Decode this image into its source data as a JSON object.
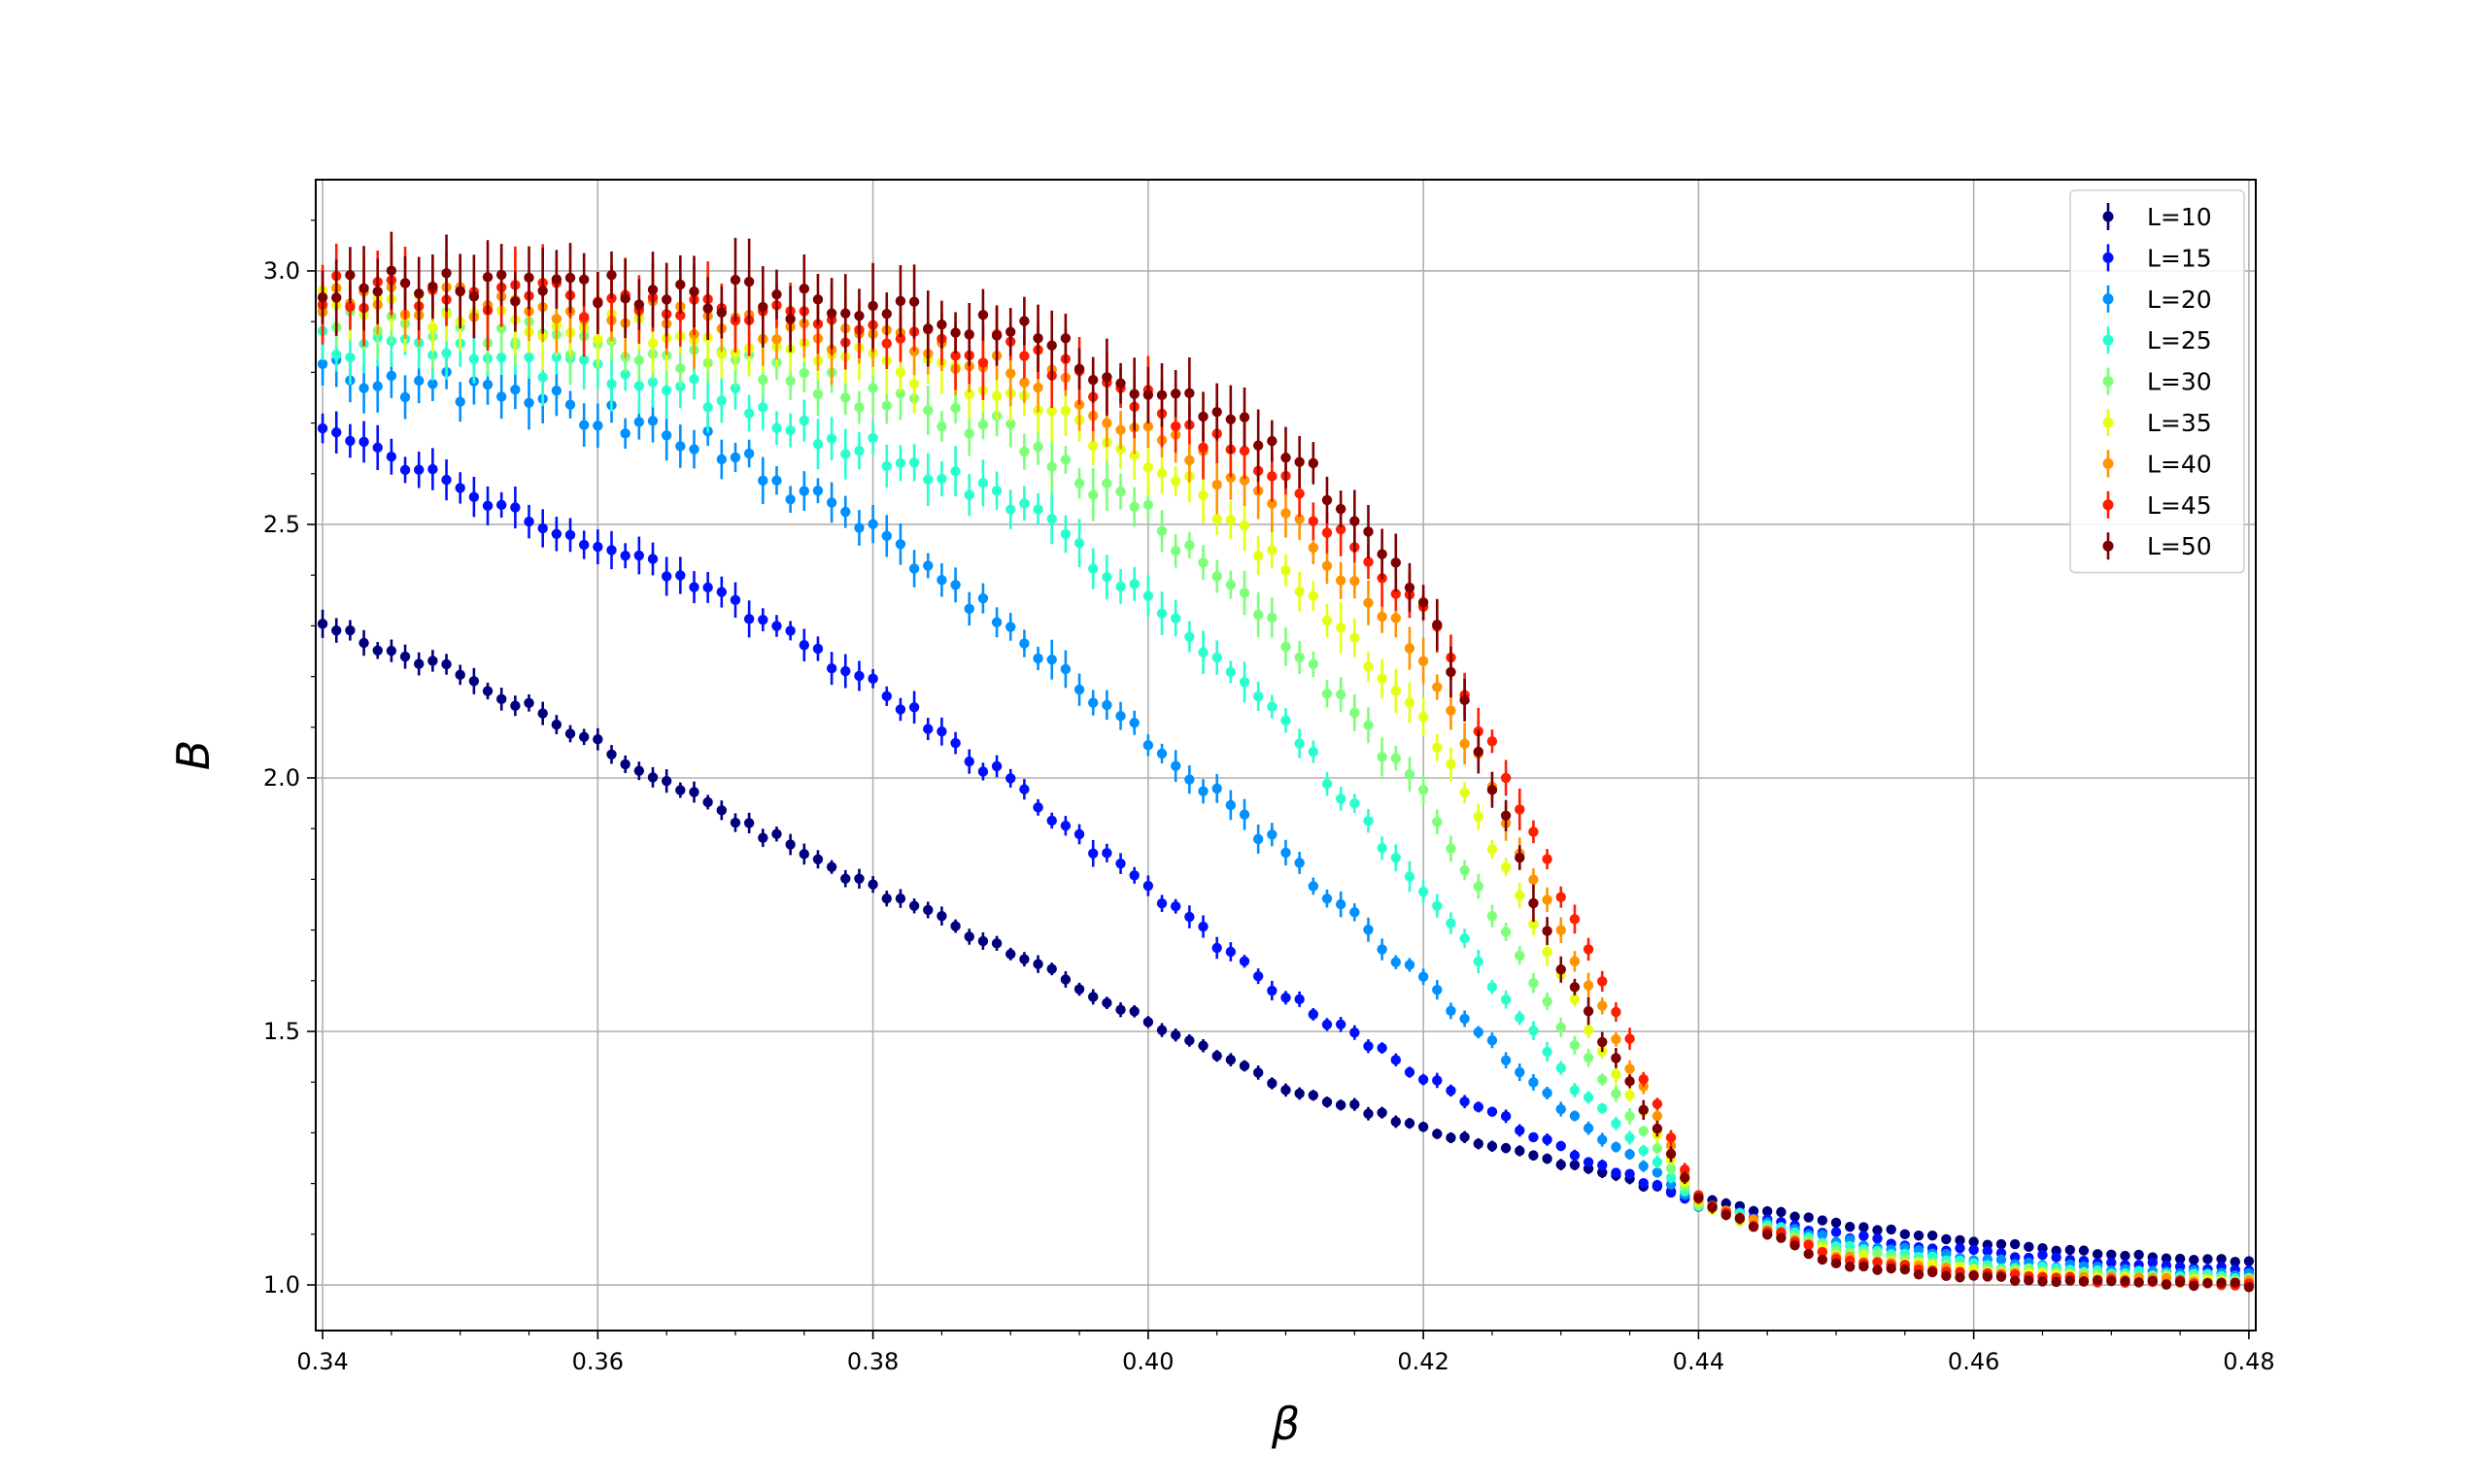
{
  "chart_data": {
    "type": "scatter",
    "xlabel": "β",
    "ylabel": "B",
    "xlim": [
      0.3395,
      0.4805
    ],
    "ylim": [
      0.91,
      3.18
    ],
    "grid": true,
    "legend_position": "top-right",
    "x_ticks": [
      0.34,
      0.36,
      0.38,
      0.4,
      0.42,
      0.44,
      0.46,
      0.48
    ],
    "x_tick_labels": [
      "0.34",
      "0.36",
      "0.38",
      "0.40",
      "0.42",
      "0.44",
      "0.46",
      "0.48"
    ],
    "y_ticks": [
      1.0,
      1.5,
      2.0,
      2.5,
      3.0
    ],
    "y_tick_labels": [
      "1.0",
      "1.5",
      "2.0",
      "2.5",
      "3.0"
    ],
    "x_start": 0.34,
    "x_end": 0.48,
    "x_step": 0.001,
    "series": [
      {
        "name": "L=10",
        "color": "#00007f",
        "anchors": [
          [
            0.34,
            2.3
          ],
          [
            0.35,
            2.2
          ],
          [
            0.36,
            2.07
          ],
          [
            0.37,
            1.92
          ],
          [
            0.38,
            1.78
          ],
          [
            0.39,
            1.66
          ],
          [
            0.4,
            1.52
          ],
          [
            0.41,
            1.39
          ],
          [
            0.42,
            1.31
          ],
          [
            0.43,
            1.24
          ],
          [
            0.44,
            1.17
          ],
          [
            0.45,
            1.12
          ],
          [
            0.46,
            1.085
          ],
          [
            0.47,
            1.06
          ],
          [
            0.48,
            1.045
          ]
        ],
        "err_hi": 0.03,
        "err_lo": 0.008,
        "noise": 0.02
      },
      {
        "name": "L=15",
        "color": "#0010ff",
        "anchors": [
          [
            0.34,
            2.68
          ],
          [
            0.35,
            2.58
          ],
          [
            0.36,
            2.46
          ],
          [
            0.37,
            2.34
          ],
          [
            0.38,
            2.18
          ],
          [
            0.39,
            1.99
          ],
          [
            0.4,
            1.78
          ],
          [
            0.41,
            1.57
          ],
          [
            0.42,
            1.41
          ],
          [
            0.43,
            1.27
          ],
          [
            0.44,
            1.16
          ],
          [
            0.45,
            1.1
          ],
          [
            0.46,
            1.065
          ],
          [
            0.47,
            1.045
          ],
          [
            0.48,
            1.03
          ]
        ],
        "err_hi": 0.04,
        "err_lo": 0.006,
        "noise": 0.025
      },
      {
        "name": "L=20",
        "color": "#0090ff",
        "anchors": [
          [
            0.34,
            2.8
          ],
          [
            0.35,
            2.77
          ],
          [
            0.36,
            2.72
          ],
          [
            0.37,
            2.64
          ],
          [
            0.38,
            2.48
          ],
          [
            0.39,
            2.3
          ],
          [
            0.4,
            2.08
          ],
          [
            0.41,
            1.85
          ],
          [
            0.42,
            1.6
          ],
          [
            0.43,
            1.35
          ],
          [
            0.44,
            1.16
          ],
          [
            0.45,
            1.09
          ],
          [
            0.46,
            1.05
          ],
          [
            0.47,
            1.03
          ],
          [
            0.48,
            1.02
          ]
        ],
        "err_hi": 0.045,
        "err_lo": 0.006,
        "noise": 0.03
      },
      {
        "name": "L=25",
        "color": "#29ffce",
        "anchors": [
          [
            0.34,
            2.86
          ],
          [
            0.35,
            2.84
          ],
          [
            0.36,
            2.8
          ],
          [
            0.37,
            2.74
          ],
          [
            0.38,
            2.65
          ],
          [
            0.39,
            2.55
          ],
          [
            0.4,
            2.36
          ],
          [
            0.41,
            2.1
          ],
          [
            0.42,
            1.78
          ],
          [
            0.43,
            1.42
          ],
          [
            0.44,
            1.16
          ],
          [
            0.45,
            1.08
          ],
          [
            0.46,
            1.04
          ],
          [
            0.47,
            1.025
          ],
          [
            0.48,
            1.015
          ]
        ],
        "err_hi": 0.05,
        "err_lo": 0.006,
        "noise": 0.03
      },
      {
        "name": "L=30",
        "color": "#7dff7a",
        "anchors": [
          [
            0.34,
            2.9
          ],
          [
            0.35,
            2.89
          ],
          [
            0.36,
            2.86
          ],
          [
            0.37,
            2.82
          ],
          [
            0.38,
            2.75
          ],
          [
            0.39,
            2.68
          ],
          [
            0.4,
            2.52
          ],
          [
            0.41,
            2.28
          ],
          [
            0.42,
            1.96
          ],
          [
            0.43,
            1.51
          ],
          [
            0.44,
            1.16
          ],
          [
            0.45,
            1.07
          ],
          [
            0.46,
            1.035
          ],
          [
            0.47,
            1.02
          ],
          [
            0.48,
            1.01
          ]
        ],
        "err_hi": 0.05,
        "err_lo": 0.006,
        "noise": 0.03
      },
      {
        "name": "L=35",
        "color": "#e4ff13",
        "anchors": [
          [
            0.34,
            2.93
          ],
          [
            0.35,
            2.92
          ],
          [
            0.36,
            2.89
          ],
          [
            0.37,
            2.86
          ],
          [
            0.38,
            2.82
          ],
          [
            0.39,
            2.76
          ],
          [
            0.4,
            2.63
          ],
          [
            0.41,
            2.42
          ],
          [
            0.42,
            2.12
          ],
          [
            0.43,
            1.6
          ],
          [
            0.44,
            1.16
          ],
          [
            0.45,
            1.06
          ],
          [
            0.46,
            1.03
          ],
          [
            0.47,
            1.015
          ],
          [
            0.48,
            1.01
          ]
        ],
        "err_hi": 0.055,
        "err_lo": 0.006,
        "noise": 0.03
      },
      {
        "name": "L=40",
        "color": "#ff9400",
        "anchors": [
          [
            0.34,
            2.95
          ],
          [
            0.35,
            2.94
          ],
          [
            0.36,
            2.92
          ],
          [
            0.37,
            2.89
          ],
          [
            0.38,
            2.86
          ],
          [
            0.39,
            2.82
          ],
          [
            0.4,
            2.69
          ],
          [
            0.41,
            2.52
          ],
          [
            0.42,
            2.25
          ],
          [
            0.43,
            1.7
          ],
          [
            0.44,
            1.17
          ],
          [
            0.45,
            1.055
          ],
          [
            0.46,
            1.025
          ],
          [
            0.47,
            1.012
          ],
          [
            0.48,
            1.005
          ]
        ],
        "err_hi": 0.055,
        "err_lo": 0.006,
        "noise": 0.03
      },
      {
        "name": "L=45",
        "color": "#ff1e00",
        "anchors": [
          [
            0.34,
            2.96
          ],
          [
            0.35,
            2.95
          ],
          [
            0.36,
            2.94
          ],
          [
            0.37,
            2.91
          ],
          [
            0.38,
            2.88
          ],
          [
            0.39,
            2.84
          ],
          [
            0.4,
            2.74
          ],
          [
            0.41,
            2.58
          ],
          [
            0.42,
            2.33
          ],
          [
            0.43,
            1.78
          ],
          [
            0.44,
            1.17
          ],
          [
            0.45,
            1.05
          ],
          [
            0.46,
            1.02
          ],
          [
            0.47,
            1.008
          ],
          [
            0.48,
            1.003
          ]
        ],
        "err_hi": 0.06,
        "err_lo": 0.006,
        "noise": 0.03
      },
      {
        "name": "L=50",
        "color": "#7f0000",
        "anchors": [
          [
            0.34,
            2.97
          ],
          [
            0.35,
            2.97
          ],
          [
            0.36,
            2.96
          ],
          [
            0.37,
            2.95
          ],
          [
            0.38,
            2.92
          ],
          [
            0.39,
            2.88
          ],
          [
            0.4,
            2.77
          ],
          [
            0.41,
            2.66
          ],
          [
            0.42,
            2.36
          ],
          [
            0.43,
            1.62
          ],
          [
            0.44,
            1.17
          ],
          [
            0.45,
            1.04
          ],
          [
            0.46,
            1.015
          ],
          [
            0.47,
            1.005
          ],
          [
            0.48,
            1.0
          ]
        ],
        "err_hi": 0.065,
        "err_lo": 0.006,
        "noise": 0.03
      }
    ]
  }
}
